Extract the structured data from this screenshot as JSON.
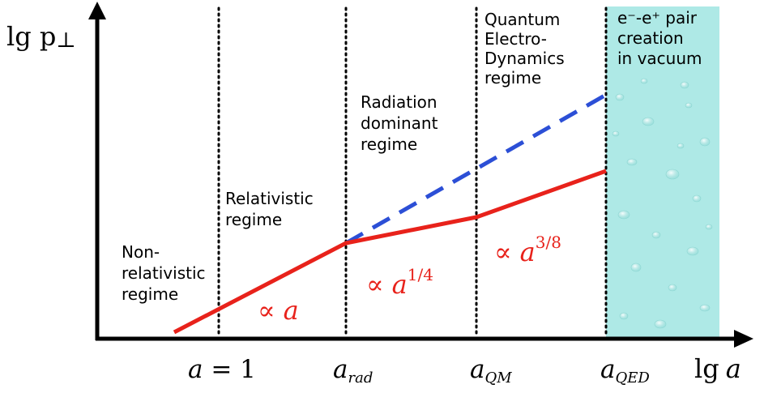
{
  "axes": {
    "y_label_main": "lg p",
    "y_label_sub": "⊥",
    "x_label_prefix": "lg",
    "x_label_var": "a"
  },
  "x_ticks": [
    {
      "id": "a-eq-1",
      "var": "a",
      "rest": " = 1"
    },
    {
      "id": "a-rad",
      "var": "a",
      "sub": "rad"
    },
    {
      "id": "a-qm",
      "var": "a",
      "sub": "QM"
    },
    {
      "id": "a-qed",
      "var": "a",
      "sub": "QED"
    }
  ],
  "regimes": [
    {
      "id": "non-relativistic",
      "lines": [
        "Non-",
        "relativistic",
        "regime"
      ]
    },
    {
      "id": "relativistic",
      "lines": [
        "Relativistic",
        "regime"
      ]
    },
    {
      "id": "radiation-dominant",
      "lines": [
        "Radiation",
        "dominant",
        "regime"
      ]
    },
    {
      "id": "qed",
      "lines": [
        "Quantum",
        "Electro-",
        "Dynamics",
        "regime"
      ]
    },
    {
      "id": "pair-creation",
      "lines": [
        "e⁻-e⁺ pair",
        "creation",
        "in vacuum"
      ]
    }
  ],
  "scaling_labels": [
    {
      "id": "scaling-a",
      "symbol": "∝",
      "var": "a",
      "exp": ""
    },
    {
      "id": "scaling-quarter",
      "symbol": "∝",
      "var": "a",
      "exp": "1/4"
    },
    {
      "id": "scaling-three-eighths",
      "symbol": "∝",
      "var": "a",
      "exp": "3/8"
    }
  ],
  "colors": {
    "red_curve": "#e8221b",
    "blue_dashed": "#2c4fd6",
    "axis": "#000000",
    "pair_region": "#aee9e6"
  }
}
